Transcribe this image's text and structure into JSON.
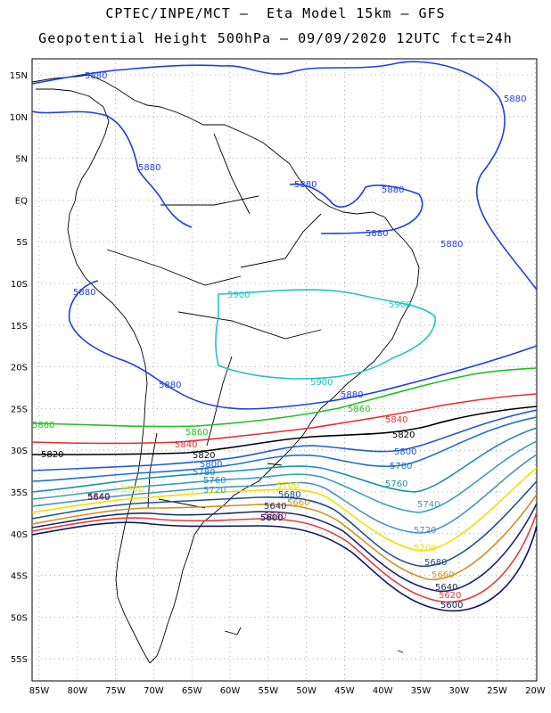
{
  "header": {
    "line1": "CPTEC/INPE/MCT –  Eta Model 15km – GFS",
    "line2": "Geopotential Height 500hPa – 09/09/2020 12UTC fct=24h"
  },
  "axes": {
    "lat_labels": [
      "15N",
      "10N",
      "5N",
      "EQ",
      "5S",
      "10S",
      "15S",
      "20S",
      "25S",
      "30S",
      "35S",
      "40S",
      "45S",
      "50S",
      "55S"
    ],
    "lon_labels": [
      "85W",
      "80W",
      "75W",
      "70W",
      "65W",
      "60W",
      "55W",
      "50W",
      "45W",
      "40W",
      "35W",
      "30W",
      "25W",
      "20W"
    ]
  },
  "contours": [
    {
      "value": "5880",
      "color": "#1f3fe0"
    },
    {
      "value": "5900",
      "color": "#22c4c4"
    },
    {
      "value": "5860",
      "color": "#22c022"
    },
    {
      "value": "5840",
      "color": "#e03030"
    },
    {
      "value": "5820",
      "color": "#000000"
    },
    {
      "value": "5800",
      "color": "#1f5ad0"
    },
    {
      "value": "5780",
      "color": "#2070c8"
    },
    {
      "value": "5760",
      "color": "#2090a8"
    },
    {
      "value": "5740",
      "color": "#3aa0b0"
    },
    {
      "value": "5720",
      "color": "#5090c0"
    },
    {
      "value": "5700",
      "color": "#f0e000"
    },
    {
      "value": "5680",
      "color": "#20508a"
    },
    {
      "value": "5660",
      "color": "#d09020"
    },
    {
      "value": "5640",
      "color": "#1a2a6a"
    },
    {
      "value": "5620",
      "color": "#e04040"
    },
    {
      "value": "5600",
      "color": "#101a5a"
    }
  ]
}
